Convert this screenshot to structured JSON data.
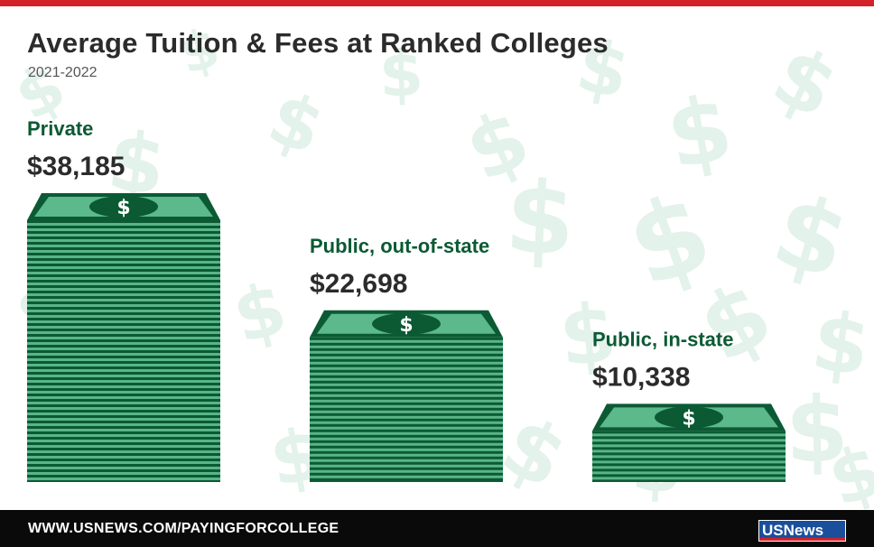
{
  "header": {
    "title": "Average Tuition & Fees at Ranked Colleges",
    "subtitle": "2021-2022"
  },
  "chart_data": {
    "type": "bar",
    "title": "Average Tuition & Fees at Ranked Colleges",
    "subtitle": "2021-2022",
    "categories": [
      "Private",
      "Public, out-of-state",
      "Public, in-state"
    ],
    "values": [
      38185,
      22698,
      10338
    ],
    "value_labels": [
      "$38,185",
      "$22,698",
      "$10,338"
    ],
    "xlabel": "",
    "ylabel": "",
    "grid": false,
    "legend": "none",
    "bar_style": "stack-of-dollar-bills"
  },
  "colors": {
    "accent_red": "#d2232a",
    "bill_dark": "#0b5a34",
    "bill_light": "#5bb98b",
    "stripe_light": "#59b587",
    "label_green": "#0b5a34"
  },
  "footer": {
    "url": "WWW.USNEWS.COM/PAYINGFORCOLLEGE",
    "logo_text": "USNews"
  }
}
